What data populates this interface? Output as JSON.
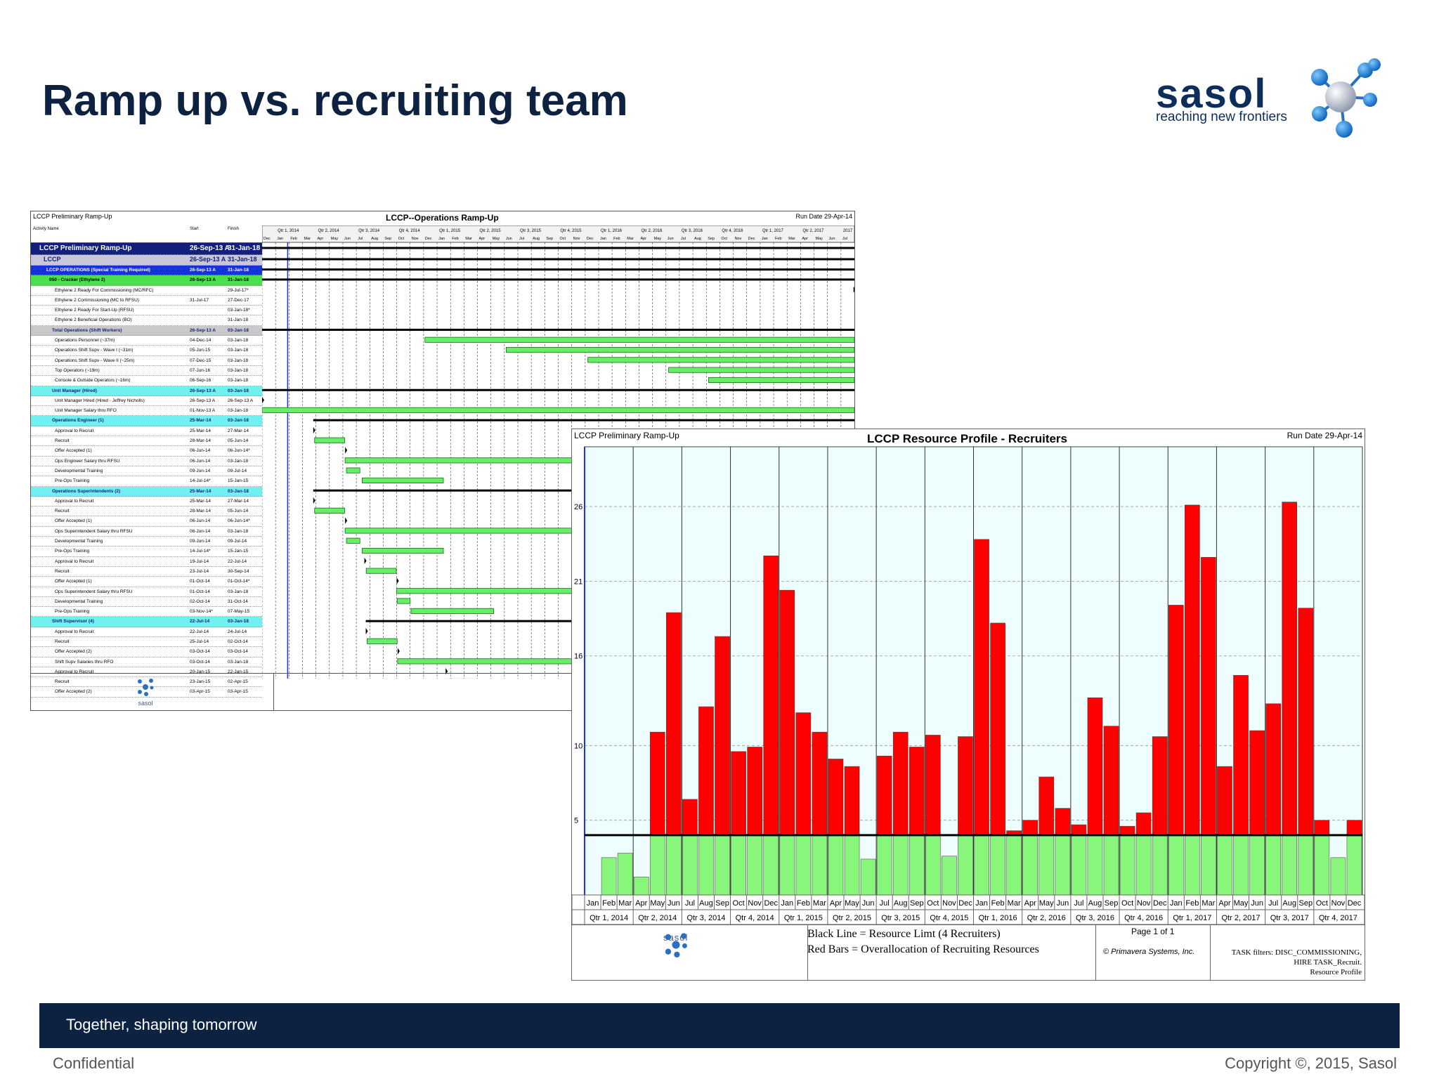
{
  "slide": {
    "title": "Ramp up vs. recruiting team",
    "footer_band": "Together, shaping tomorrow",
    "confidential": "Confidential",
    "copyright": "Copyright ©, 2015, Sasol"
  },
  "logo": {
    "word": "sasol",
    "tagline": "reaching new frontiers"
  },
  "gantt": {
    "left_header": "LCCP Preliminary Ramp-Up",
    "title": "LCCP--Operations Ramp-Up",
    "run_date": "Run Date 29-Apr-14",
    "col_activity": "Activity Name",
    "col_start": "Start",
    "col_finish": "Finish",
    "quarters": [
      "Qtr 1, 2014",
      "Qtr 2, 2014",
      "Qtr 3, 2014",
      "Qtr 4, 2014",
      "Qtr 1, 2015",
      "Qtr 2, 2015",
      "Qtr 3, 2015",
      "Qtr 4, 2015",
      "Qtr 1, 2016",
      "Qtr 2, 2016",
      "Qtr 3, 2016",
      "Qtr 4, 2016",
      "Qtr 1, 2017",
      "Qtr 2, 2017",
      "2017"
    ],
    "months": [
      "Dec",
      "Jan",
      "Feb",
      "Mar",
      "Apr",
      "May",
      "Jun",
      "Jul",
      "Aug",
      "Sep",
      "Oct",
      "Nov",
      "Dec",
      "Jan",
      "Feb",
      "Mar",
      "Apr",
      "May",
      "Jun",
      "Jul",
      "Aug",
      "Sep",
      "Oct",
      "Nov",
      "Dec",
      "Jan",
      "Feb",
      "Mar",
      "Apr",
      "May",
      "Jun",
      "Jul",
      "Aug",
      "Sep",
      "Oct",
      "Nov",
      "Dec",
      "Jan",
      "Feb",
      "Mar",
      "Apr",
      "May",
      "Jun",
      "Jul"
    ],
    "rows": [
      {
        "name": "LCCP Preliminary Ramp-Up",
        "start": "26-Sep-13 A",
        "finish": "31-Jan-18",
        "style": "lvl0"
      },
      {
        "name": "LCCP",
        "start": "26-Sep-13 A",
        "finish": "31-Jan-18",
        "style": "lvl1"
      },
      {
        "name": "LCCP OPERATIONS (Special Training Required)",
        "start": "26-Sep-13 A",
        "finish": "31-Jan-18",
        "style": "lvl2"
      },
      {
        "name": "050 - Cracker (Ethylene 2)",
        "start": "26-Sep-13 A",
        "finish": "31-Jan-18",
        "style": "grn"
      },
      {
        "name": "Ethylene 2 Ready For Commissioning (MC/RFC)",
        "start": "",
        "finish": "29-Jul-17*",
        "style": ""
      },
      {
        "name": "Ethylene 2 Commissioning (MC to RFSU)",
        "start": "31-Jul-17",
        "finish": "27-Dec-17",
        "style": ""
      },
      {
        "name": "Ethylene 2 Ready For Start-Up (RFSU)",
        "start": "",
        "finish": "03-Jan-18*",
        "style": ""
      },
      {
        "name": "Ethylene 2 Beneficial Operations (BO)",
        "start": "",
        "finish": "31-Jan-18",
        "style": ""
      },
      {
        "name": "Total Operations (Shift Workers)",
        "start": "26-Sep-13 A",
        "finish": "03-Jan-18",
        "style": "gry"
      },
      {
        "name": "Operations Personnel (~37m)",
        "start": "04-Dec-14",
        "finish": "03-Jan-18",
        "style": ""
      },
      {
        "name": "Operations Shift Supv - Wave I (~31m)",
        "start": "05-Jun-15",
        "finish": "03-Jan-18",
        "style": ""
      },
      {
        "name": "Operations Shift Supv - Wave II (~25m)",
        "start": "07-Dec-15",
        "finish": "03-Jan-18",
        "style": ""
      },
      {
        "name": "Top Operators (~19m)",
        "start": "07-Jun-16",
        "finish": "03-Jan-18",
        "style": ""
      },
      {
        "name": "Console & Outside Operators (~16m)",
        "start": "06-Sep-16",
        "finish": "03-Jan-18",
        "style": ""
      },
      {
        "name": "Unit Manager (Hired)",
        "start": "26-Sep-13 A",
        "finish": "03-Jan-18",
        "style": "cyn"
      },
      {
        "name": "Unit Manager Hired (Hired - Jeffrey Nicholls)",
        "start": "26-Sep-13 A",
        "finish": "26-Sep-13 A",
        "style": ""
      },
      {
        "name": "Unit Manager Salary thru RFO",
        "start": "01-Nov-13 A",
        "finish": "03-Jan-18",
        "style": ""
      },
      {
        "name": "Operations Engineer (1)",
        "start": "25-Mar-14",
        "finish": "03-Jan-18",
        "style": "cyn"
      },
      {
        "name": "Approval to Recruit",
        "start": "25-Mar-14",
        "finish": "27-Mar-14",
        "style": ""
      },
      {
        "name": "Recruit",
        "start": "28-Mar-14",
        "finish": "05-Jun-14",
        "style": ""
      },
      {
        "name": "Offer Accepted (1)",
        "start": "06-Jun-14",
        "finish": "06-Jun-14*",
        "style": ""
      },
      {
        "name": "Ops Engineer Salary thru RFSU",
        "start": "06-Jun-14",
        "finish": "03-Jan-18",
        "style": ""
      },
      {
        "name": "Developmental Training",
        "start": "09-Jun-14",
        "finish": "09-Jul-14",
        "style": ""
      },
      {
        "name": "Pre-Ops Training",
        "start": "14-Jul-14*",
        "finish": "15-Jan-15",
        "style": ""
      },
      {
        "name": "Operations Superintendents (2)",
        "start": "25-Mar-14",
        "finish": "03-Jan-18",
        "style": "cyn"
      },
      {
        "name": "Approval to Recruit",
        "start": "25-Mar-14",
        "finish": "27-Mar-14",
        "style": ""
      },
      {
        "name": "Recruit",
        "start": "28-Mar-14",
        "finish": "05-Jun-14",
        "style": ""
      },
      {
        "name": "Offer Accepted (1)",
        "start": "06-Jun-14",
        "finish": "06-Jun-14*",
        "style": ""
      },
      {
        "name": "Ops Superintendent Salary thru RFSU",
        "start": "06-Jun-14",
        "finish": "03-Jan-18",
        "style": ""
      },
      {
        "name": "Developmental Training",
        "start": "09-Jun-14",
        "finish": "09-Jul-14",
        "style": ""
      },
      {
        "name": "Pre-Ops Training",
        "start": "14-Jul-14*",
        "finish": "15-Jan-15",
        "style": ""
      },
      {
        "name": "Approval to Recruit",
        "start": "19-Jul-14",
        "finish": "22-Jul-14",
        "style": ""
      },
      {
        "name": "Recruit",
        "start": "23-Jul-14",
        "finish": "30-Sep-14",
        "style": ""
      },
      {
        "name": "Offer Accepted (1)",
        "start": "01-Oct-14",
        "finish": "01-Oct-14*",
        "style": ""
      },
      {
        "name": "Ops Superintendent Salary thru RFSU",
        "start": "01-Oct-14",
        "finish": "03-Jan-18",
        "style": ""
      },
      {
        "name": "Developmental Training",
        "start": "02-Oct-14",
        "finish": "31-Oct-14",
        "style": ""
      },
      {
        "name": "Pre-Ops Training",
        "start": "03-Nov-14*",
        "finish": "07-May-15",
        "style": ""
      },
      {
        "name": "Shift Supervisor (4)",
        "start": "22-Jul-14",
        "finish": "03-Jan-18",
        "style": "cyn"
      },
      {
        "name": "Approval to Recruit",
        "start": "22-Jul-14",
        "finish": "24-Jul-14",
        "style": ""
      },
      {
        "name": "Recruit",
        "start": "25-Jul-14",
        "finish": "02-Oct-14",
        "style": ""
      },
      {
        "name": "Offer Accepted (2)",
        "start": "03-Oct-14",
        "finish": "03-Oct-14",
        "style": ""
      },
      {
        "name": "Shift Supv Salaries thru RFO",
        "start": "03-Oct-14",
        "finish": "03-Jan-18",
        "style": ""
      },
      {
        "name": "Approval to Recruit",
        "start": "20-Jan-15",
        "finish": "22-Jan-15",
        "style": ""
      },
      {
        "name": "Recruit",
        "start": "23-Jan-15",
        "finish": "02-Apr-15",
        "style": ""
      },
      {
        "name": "Offer Accepted (2)",
        "start": "03-Apr-15",
        "finish": "03-Apr-15",
        "style": ""
      }
    ],
    "footer_logo_word": "sasol"
  },
  "resource_profile": {
    "left_header": "LCCP Preliminary Ramp-Up",
    "title": "LCCP Resource Profile - Recruiters",
    "run_date": "Run Date 29-Apr-14",
    "legend_black": "Black Line = Resource Limt (4 Recruiters)",
    "legend_red": "Red Bars = Overallocation of Recruiting Resources",
    "page": "Page 1 of 1",
    "primavera": "© Primavera Systems, Inc.",
    "filters_1": "TASK filters: DISC_COMMISSIONING,",
    "filters_2": "HIRE TASK_Recruit.",
    "filters_3": "Resource Profile",
    "footer_logo_word": "sasol",
    "colors": {
      "over": "#ff0000",
      "within": "#88f67b",
      "limit": "#000000",
      "bg": "#eefdfd"
    }
  },
  "chart_data": {
    "type": "bar",
    "title": "LCCP Resource Profile - Recruiters",
    "xlabel": "",
    "ylabel": "",
    "ylim": [
      0,
      30
    ],
    "yticks": [
      5,
      10,
      16,
      21,
      26
    ],
    "categories": [
      "Jan",
      "Feb",
      "Mar",
      "Apr",
      "May",
      "Jun",
      "Jul",
      "Aug",
      "Sep",
      "Oct",
      "Nov",
      "Dec",
      "Jan",
      "Feb",
      "Mar",
      "Apr",
      "May",
      "Jun",
      "Jul",
      "Aug",
      "Sep",
      "Oct",
      "Nov",
      "Dec",
      "Jan",
      "Feb",
      "Mar",
      "Apr",
      "May",
      "Jun",
      "Jul",
      "Aug",
      "Sep",
      "Oct",
      "Nov",
      "Dec",
      "Jan",
      "Feb",
      "Mar",
      "Apr",
      "May",
      "Jun",
      "Jul",
      "Aug",
      "Sep",
      "Oct",
      "Nov",
      "Dec"
    ],
    "quarters": [
      "Qtr 1, 2014",
      "Qtr 2, 2014",
      "Qtr 3, 2014",
      "Qtr 4, 2014",
      "Qtr 1, 2015",
      "Qtr 2, 2015",
      "Qtr 3, 2015",
      "Qtr 4, 2015",
      "Qtr 1, 2016",
      "Qtr 2, 2016",
      "Qtr 3, 2016",
      "Qtr 4, 2016",
      "Qtr 1, 2017",
      "Qtr 2, 2017",
      "Qtr 3, 2017",
      "Qtr 4, 2017"
    ],
    "series": [
      {
        "name": "Black Line = Resource Limt (4 Recruiters)",
        "values": [
          4,
          4,
          4,
          4,
          4,
          4,
          4,
          4,
          4,
          4,
          4,
          4,
          4,
          4,
          4,
          4,
          4,
          4,
          4,
          4,
          4,
          4,
          4,
          4,
          4,
          4,
          4,
          4,
          4,
          4,
          4,
          4,
          4,
          4,
          4,
          4,
          4,
          4,
          4,
          4,
          4,
          4,
          4,
          4,
          4,
          4,
          4,
          4
        ]
      },
      {
        "name": "Red Bars = Overallocation of Recruiting Resources",
        "values": [
          0,
          2.5,
          2.8,
          1.2,
          10.9,
          18.9,
          6.4,
          12.6,
          17.3,
          9.6,
          9.9,
          22.7,
          20.4,
          12.2,
          10.9,
          9.1,
          8.6,
          2.4,
          9.3,
          10.9,
          9.9,
          10.7,
          2.6,
          10.6,
          23.8,
          18.2,
          4.3,
          5.0,
          7.9,
          5.8,
          4.7,
          13.2,
          11.3,
          4.6,
          5.5,
          10.6,
          19.4,
          26.1,
          22.6,
          8.6,
          14.7,
          11.0,
          12.8,
          26.3,
          19.2,
          5.0,
          2.5,
          5.0
        ]
      }
    ]
  }
}
